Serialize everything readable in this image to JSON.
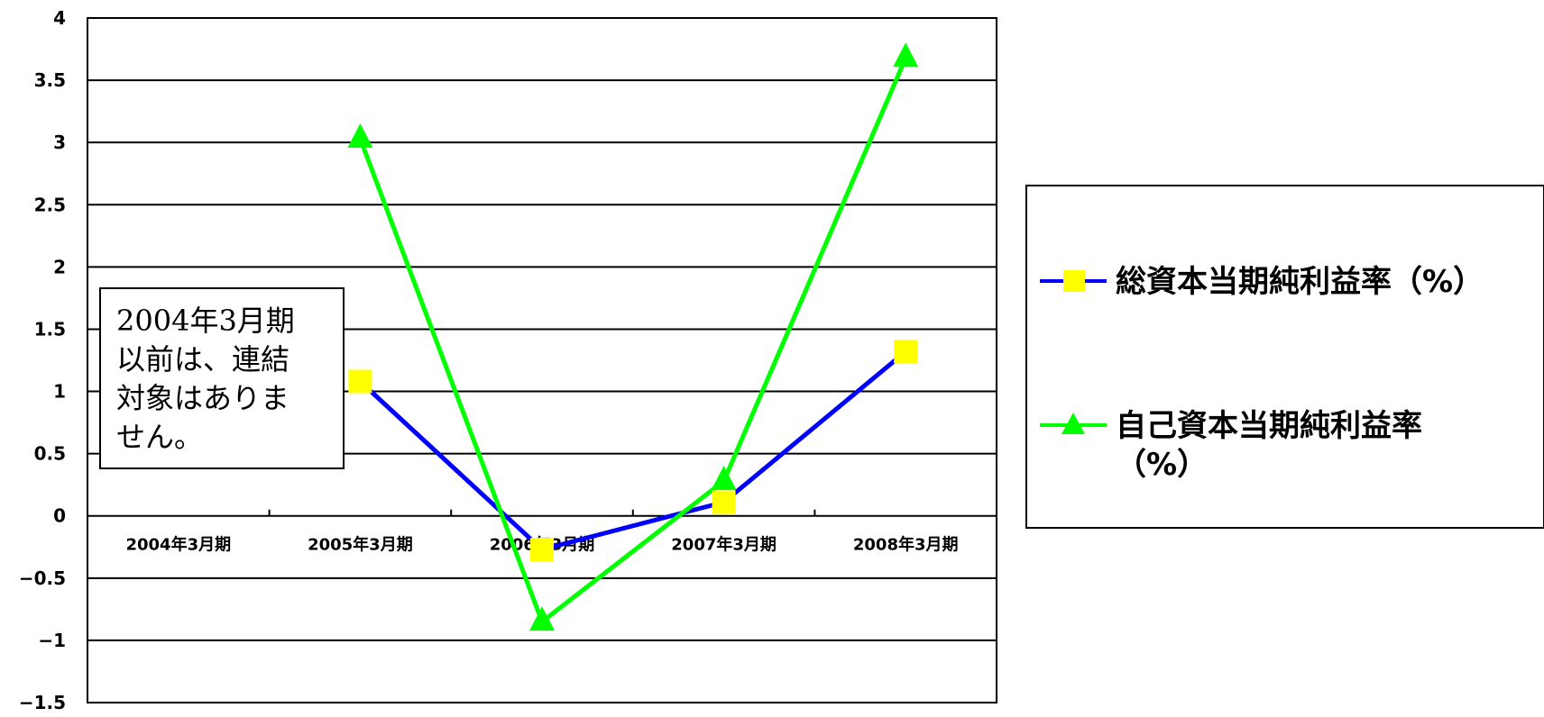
{
  "chart_data": {
    "type": "line",
    "categories": [
      "2004年3月期",
      "2005年3月期",
      "2006年3月期",
      "2007年3月期",
      "2008年3月期"
    ],
    "ylim": [
      -1.5,
      4
    ],
    "yticks": [
      "4",
      "3.5",
      "3",
      "2.5",
      "2",
      "1.5",
      "1",
      "0.5",
      "0",
      "−0.5",
      "−1",
      "−1.5"
    ],
    "grid": true,
    "legend_position": "right",
    "series": [
      {
        "name": "総資本当期純利益率（%）",
        "values": [
          null,
          1.08,
          -0.27,
          0.11,
          1.32
        ],
        "color": "#0000ff",
        "marker": "square",
        "marker_color": "#ffff00"
      },
      {
        "name": "自己資本当期純利益率（%）",
        "values": [
          null,
          3.03,
          -0.85,
          0.28,
          3.68
        ],
        "color": "#00ff00",
        "marker": "triangle",
        "marker_color": "#00ff00"
      }
    ],
    "annotation": [
      "2004年3月期",
      "以前は、連結",
      "対象はありま",
      "せん。"
    ],
    "legend_lines": [
      [
        "総資本当期純利益率（%）"
      ],
      [
        "自己資本当期純利益率",
        "（%）"
      ]
    ]
  }
}
